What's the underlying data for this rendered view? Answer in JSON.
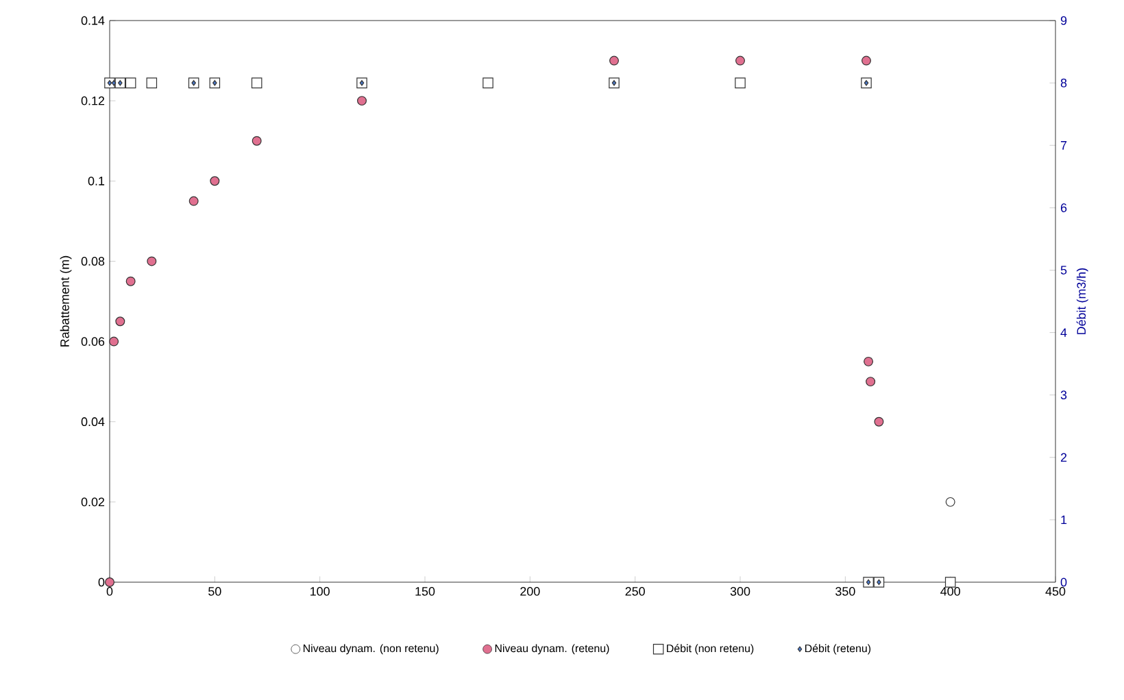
{
  "chart_data": {
    "type": "scatter",
    "ylabel": "Rabattement (m)",
    "y2label": "Débit (m3/h)",
    "xlim": [
      0,
      450
    ],
    "xticks": [
      0,
      50,
      100,
      150,
      200,
      250,
      300,
      350,
      400,
      450
    ],
    "ylim": [
      0,
      0.14
    ],
    "yticks": [
      0,
      0.02,
      0.04,
      0.06,
      0.08,
      0.1,
      0.12,
      0.14
    ],
    "y2lim": [
      0,
      9
    ],
    "y2ticks": [
      0,
      1,
      2,
      3,
      4,
      5,
      6,
      7,
      8,
      9
    ],
    "legend": "bottom",
    "grid": false,
    "series": [
      {
        "name": "Niveau dynam. (non retenu)",
        "color": "#ffffff",
        "marker": "circle",
        "x": [
          400
        ],
        "values": [
          0.02
        ]
      },
      {
        "name": "Niveau dynam. (retenu)",
        "color": "#e07090",
        "marker": "circle",
        "x": [
          0,
          2,
          5,
          10,
          20,
          40,
          50,
          70,
          120,
          240,
          300,
          360,
          361,
          362,
          366
        ],
        "values": [
          0,
          0.06,
          0.065,
          0.075,
          0.08,
          0.095,
          0.1,
          0.11,
          0.12,
          0.13,
          0.13,
          0.13,
          0.055,
          0.05,
          0.04
        ]
      },
      {
        "name": "Débit (non retenu)",
        "color": "#ffffff",
        "marker": "square",
        "axis": "y2",
        "x": [
          0,
          5,
          10,
          20,
          40,
          50,
          70,
          120,
          180,
          240,
          300,
          360,
          361,
          366,
          400
        ],
        "values": [
          8,
          8,
          8,
          8,
          8,
          8,
          8,
          8,
          8,
          8,
          8,
          8,
          0,
          0,
          0
        ]
      },
      {
        "name": "Débit (retenu)",
        "color": "#4a78c8",
        "marker": "diamond",
        "axis": "y2",
        "x": [
          0,
          2,
          5,
          40,
          50,
          120,
          240,
          360,
          361,
          366
        ],
        "values": [
          8,
          8,
          8,
          8,
          8,
          8,
          8,
          8,
          0,
          0
        ]
      }
    ]
  }
}
